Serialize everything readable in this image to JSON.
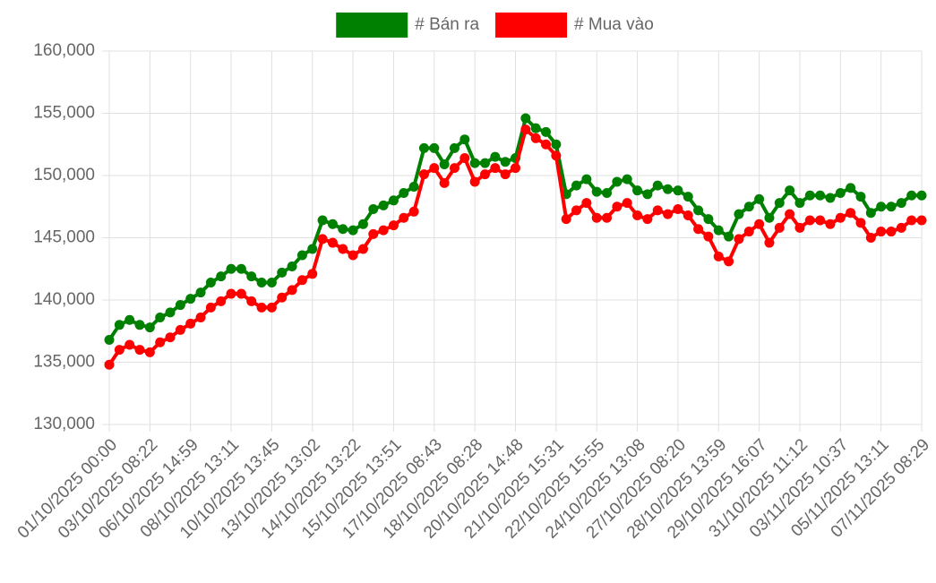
{
  "chart_data": {
    "type": "line",
    "categories": [
      "01/10/2025 00:00",
      null,
      null,
      null,
      "03/10/2025 08:22",
      null,
      null,
      null,
      "06/10/2025 14:59",
      null,
      null,
      null,
      "08/10/2025 13:11",
      null,
      null,
      null,
      "10/10/2025 13:45",
      null,
      null,
      null,
      "13/10/2025 13:02",
      null,
      null,
      null,
      "14/10/2025 13:22",
      null,
      null,
      null,
      "15/10/2025 13:51",
      null,
      null,
      null,
      "17/10/2025 08:43",
      null,
      null,
      null,
      "18/10/2025 08:28",
      null,
      null,
      null,
      "20/10/2025 14:48",
      null,
      null,
      null,
      "21/10/2025 15:31",
      null,
      null,
      null,
      "22/10/2025 15:55",
      null,
      null,
      null,
      "24/10/2025 13:08",
      null,
      null,
      null,
      "27/10/2025 08:20",
      null,
      null,
      null,
      "28/10/2025 13:59",
      null,
      null,
      null,
      "29/10/2025 16:07",
      null,
      null,
      null,
      "31/10/2025 11:12",
      null,
      null,
      null,
      "03/11/2025 10:37",
      null,
      null,
      null,
      "05/11/2025 13:11",
      null,
      null,
      null,
      "07/11/2025 08:29"
    ],
    "series": [
      {
        "name": "# Bán ra",
        "color": "#008000",
        "values": [
          136800,
          138000,
          138400,
          138000,
          137800,
          138600,
          139000,
          139600,
          140100,
          140600,
          141400,
          141900,
          142500,
          142500,
          141900,
          141400,
          141400,
          142200,
          142700,
          143600,
          144100,
          146400,
          146100,
          145700,
          145600,
          146100,
          147300,
          147600,
          148000,
          148600,
          149100,
          152200,
          152200,
          150900,
          152200,
          152900,
          151000,
          151000,
          151500,
          151100,
          151400,
          154600,
          153800,
          153500,
          152500,
          148500,
          149200,
          149700,
          148700,
          148600,
          149500,
          149700,
          148800,
          148500,
          149200,
          148900,
          148800,
          148300,
          147200,
          146500,
          145600,
          145100,
          146900,
          147500,
          148100,
          146600,
          147800,
          148800,
          147800,
          148400,
          148400,
          148200,
          148600,
          149000,
          148300,
          147000,
          147500,
          147500,
          147800,
          148400,
          148400
        ]
      },
      {
        "name": "# Mua vào",
        "color": "#ff0000",
        "values": [
          134800,
          136000,
          136400,
          136000,
          135800,
          136600,
          137000,
          137600,
          138100,
          138600,
          139400,
          139900,
          140500,
          140500,
          139900,
          139400,
          139400,
          140200,
          140800,
          141600,
          142100,
          144900,
          144600,
          144100,
          143600,
          144100,
          145300,
          145600,
          146000,
          146600,
          147100,
          150100,
          150600,
          149400,
          150600,
          151400,
          149500,
          150100,
          150600,
          150100,
          150600,
          153700,
          153000,
          152500,
          151600,
          146500,
          147200,
          147800,
          146600,
          146600,
          147500,
          147800,
          146800,
          146500,
          147200,
          146900,
          147300,
          146800,
          145700,
          145100,
          143500,
          143100,
          144900,
          145500,
          146100,
          144600,
          145800,
          146900,
          145800,
          146400,
          146400,
          146100,
          146600,
          147000,
          146200,
          145000,
          145500,
          145500,
          145800,
          146400,
          146400
        ]
      }
    ],
    "ylim": [
      130000,
      160000
    ],
    "yticks": [
      {
        "value": 130000,
        "label": "130,000"
      },
      {
        "value": 135000,
        "label": "135,000"
      },
      {
        "value": 140000,
        "label": "140,000"
      },
      {
        "value": 145000,
        "label": "145,000"
      },
      {
        "value": 150000,
        "label": "150,000"
      },
      {
        "value": 155000,
        "label": "155,000"
      },
      {
        "value": 160000,
        "label": "160,000"
      }
    ],
    "grid": true,
    "legend": "top"
  }
}
